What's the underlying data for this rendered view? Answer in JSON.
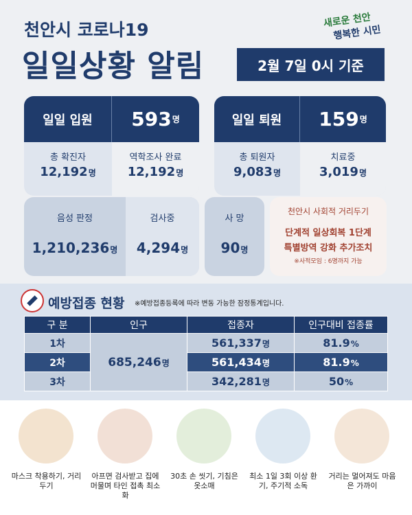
{
  "header": {
    "subtitle": "천안시 코로나19",
    "title": "일일상황 알림",
    "date": "2월 7일 0시 기준",
    "logo": [
      "새로운 천안",
      "행복한 시민"
    ]
  },
  "stats": {
    "admission": {
      "label": "일일 입원",
      "value": "593",
      "unit": "명"
    },
    "confirmed": {
      "label": "총 확진자",
      "value": "12,192",
      "unit": "명"
    },
    "investigated": {
      "label": "역학조사 완료",
      "value": "12,192",
      "unit": "명"
    },
    "discharge": {
      "label": "일일 퇴원",
      "value": "159",
      "unit": "명"
    },
    "discharged_total": {
      "label": "총 퇴원자",
      "value": "9,083",
      "unit": "명"
    },
    "treating": {
      "label": "치료중",
      "value": "3,019",
      "unit": "명"
    },
    "negative": {
      "label": "음성 판정",
      "value": "1,210,236",
      "unit": "명"
    },
    "testing": {
      "label": "검사중",
      "value": "4,294",
      "unit": "명"
    },
    "deaths": {
      "label": "사 망",
      "value": "90",
      "unit": "명"
    }
  },
  "distancing": {
    "title": "천안시 사회적 거리두기",
    "lines": [
      "단계적 일상회복 1단계",
      "특별방역 강화 추가조치"
    ],
    "note": "※사적모임 : 6명까지 가능"
  },
  "vaccination": {
    "title": "예방접종 현황",
    "note": "※예방접종등록에 따라 변동 가능한 잠정통계입니다.",
    "table": {
      "headers": [
        "구 분",
        "인구",
        "접종자",
        "인구대비 접종률"
      ],
      "population": {
        "value": "685,246",
        "unit": "명"
      },
      "rows": [
        {
          "label": "1차",
          "vaccinated": "561,337",
          "unit": "명",
          "rate": "81.9",
          "rate_unit": "%"
        },
        {
          "label": "2차",
          "vaccinated": "561,434",
          "unit": "명",
          "rate": "81.9",
          "rate_unit": "%"
        },
        {
          "label": "3차",
          "vaccinated": "342,281",
          "unit": "명",
          "rate": "50",
          "rate_unit": "%"
        }
      ]
    }
  },
  "tips": [
    "마스크 착용하기, 거리두기",
    "아프면 검사받고 집에 머물며 타인 접촉 최소화",
    "30초 손 씻기, 기침은 옷소매",
    "최소 1일 3회 이상 환기, 주기적 소독",
    "거리는 멀어져도 마음은 가까이"
  ]
}
